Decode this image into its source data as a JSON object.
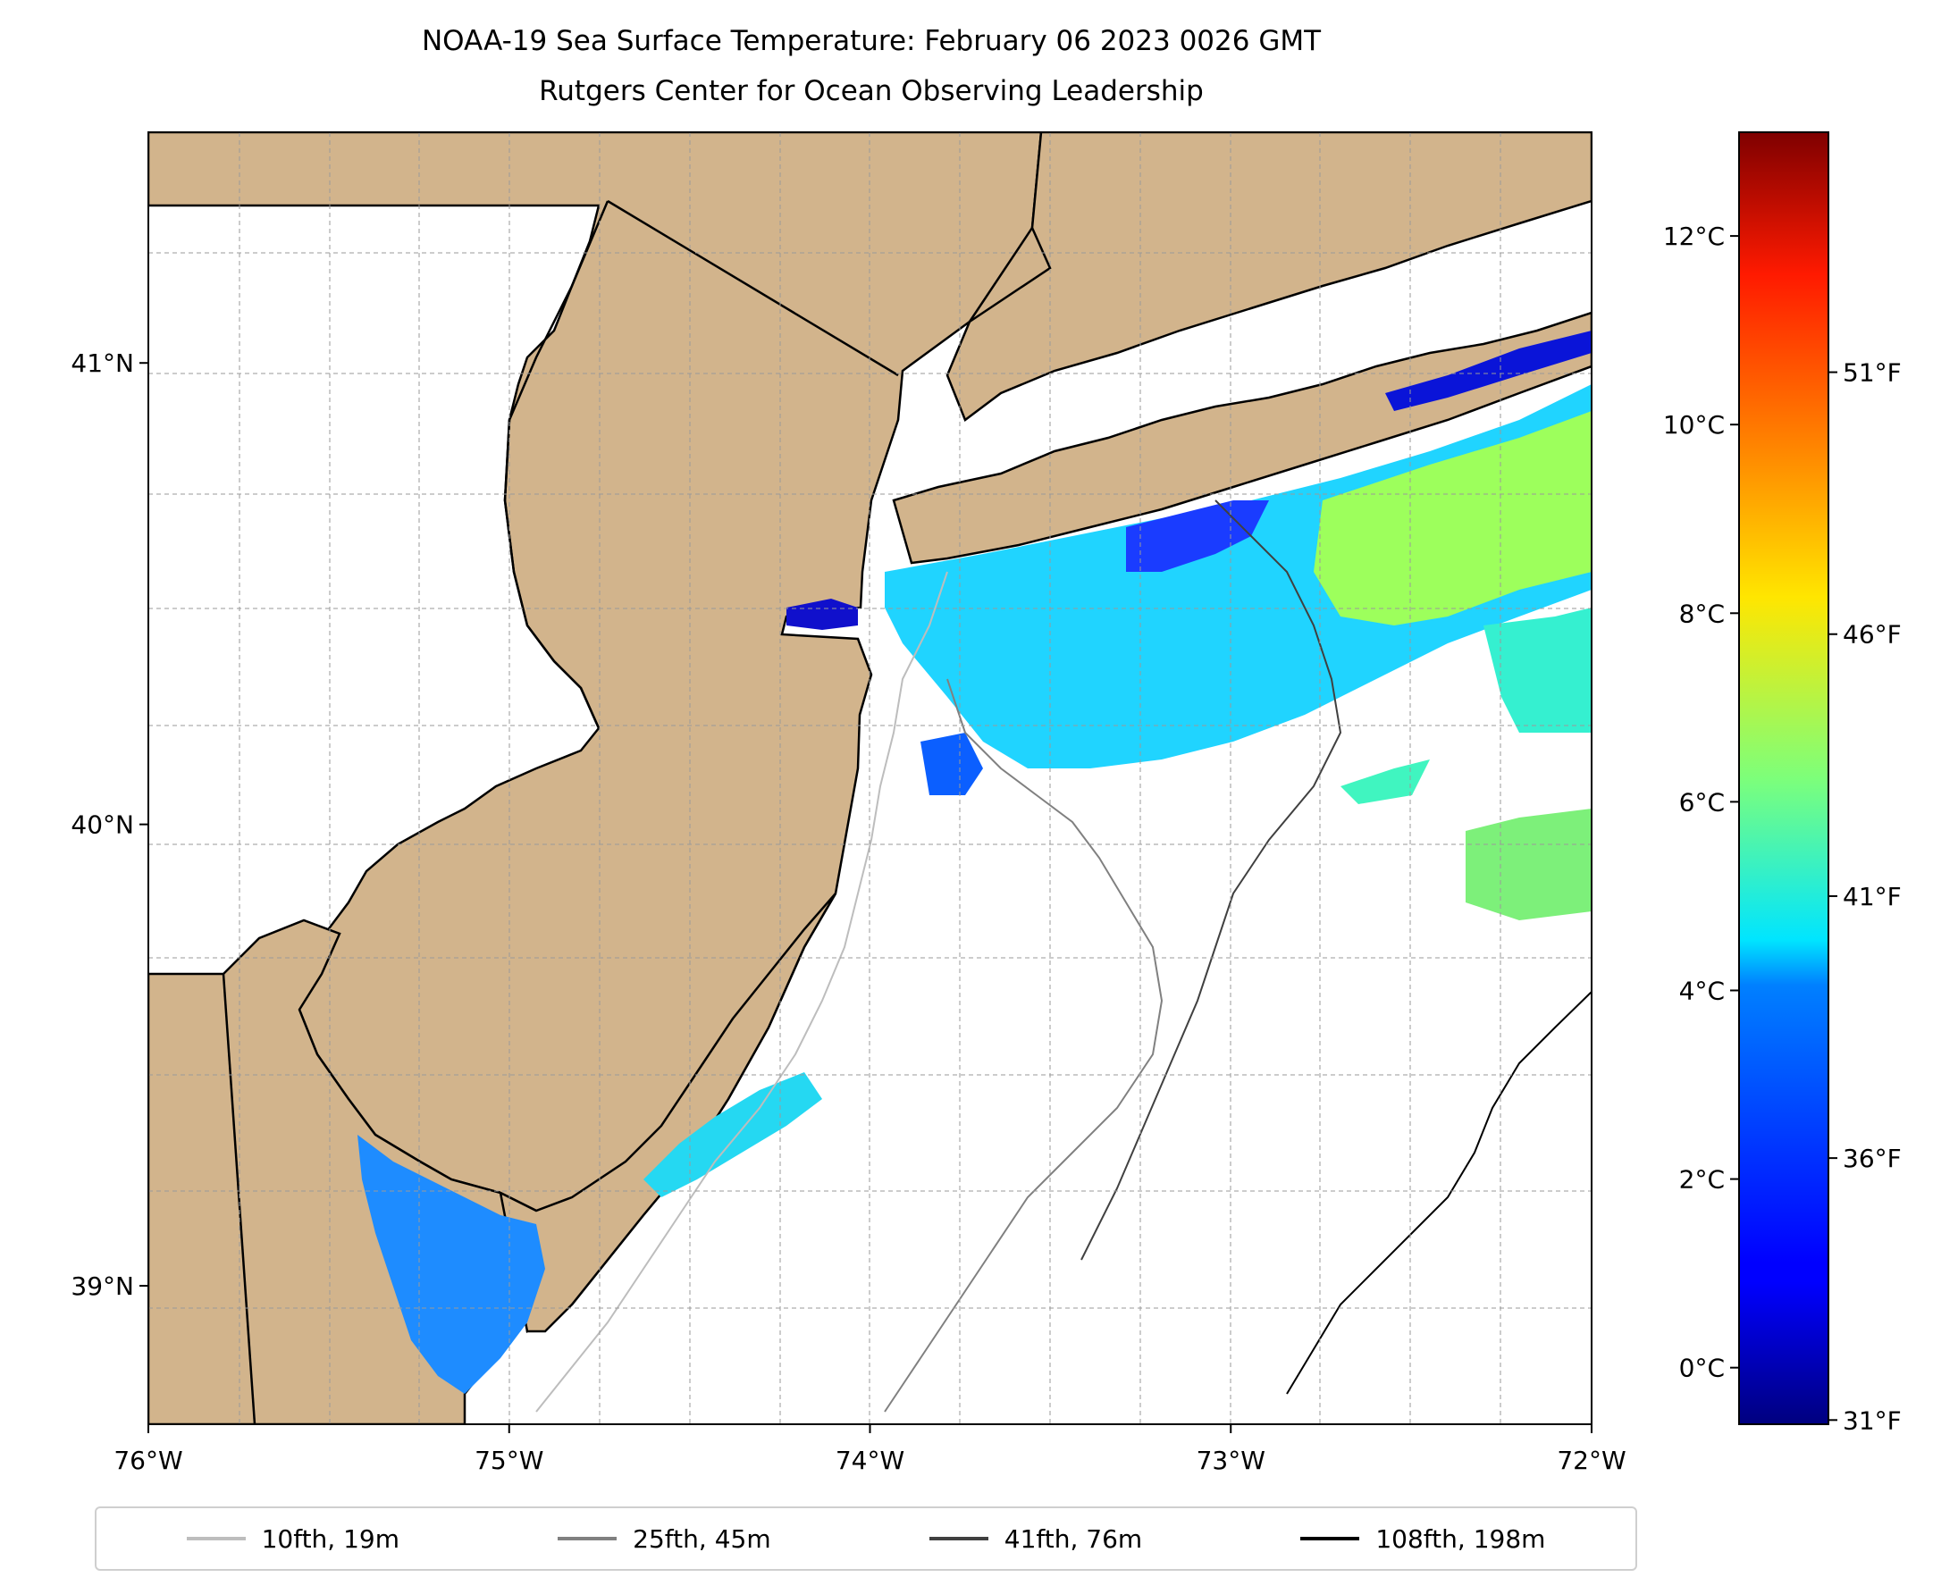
{
  "title": {
    "line1": "NOAA-19 Sea Surface Temperature: February 06 2023 0026 GMT",
    "line2": "Rutgers Center for Ocean Observing Leadership"
  },
  "map": {
    "lon_range": [
      -76,
      -72
    ],
    "lat_range": [
      38.7,
      41.5
    ],
    "lon_ticks": [
      {
        "value": -76,
        "label": "76°W"
      },
      {
        "value": -75,
        "label": "75°W"
      },
      {
        "value": -74,
        "label": "74°W"
      },
      {
        "value": -73,
        "label": "73°W"
      },
      {
        "value": -72,
        "label": "72°W"
      }
    ],
    "lat_ticks": [
      {
        "value": 41,
        "label": "41°N"
      },
      {
        "value": 40,
        "label": "40°N"
      },
      {
        "value": 39,
        "label": "39°N"
      }
    ],
    "land_color": "#d2b48c",
    "ocean_color": "#ffffff",
    "grid": true
  },
  "colorbar": {
    "colormap": "jet",
    "celsius_ticks": [
      {
        "value": 0,
        "label": "0°C"
      },
      {
        "value": 2,
        "label": "2°C"
      },
      {
        "value": 4,
        "label": "4°C"
      },
      {
        "value": 6,
        "label": "6°C"
      },
      {
        "value": 8,
        "label": "8°C"
      },
      {
        "value": 10,
        "label": "10°C"
      },
      {
        "value": 12,
        "label": "12°C"
      }
    ],
    "fahrenheit_ticks": [
      {
        "value": 31,
        "label": "31°F"
      },
      {
        "value": 36,
        "label": "36°F"
      },
      {
        "value": 41,
        "label": "41°F"
      },
      {
        "value": 46,
        "label": "46°F"
      },
      {
        "value": 51,
        "label": "51°F"
      }
    ],
    "range_c": [
      -0.6,
      13.1
    ]
  },
  "legend": {
    "placement": "bottom",
    "items": [
      {
        "label": "10fth, 19m",
        "color": "#bdbdbd"
      },
      {
        "label": "25fth, 45m",
        "color": "#808080"
      },
      {
        "label": "41fth, 76m",
        "color": "#404040"
      },
      {
        "label": "108fth, 198m",
        "color": "#000000"
      }
    ]
  }
}
